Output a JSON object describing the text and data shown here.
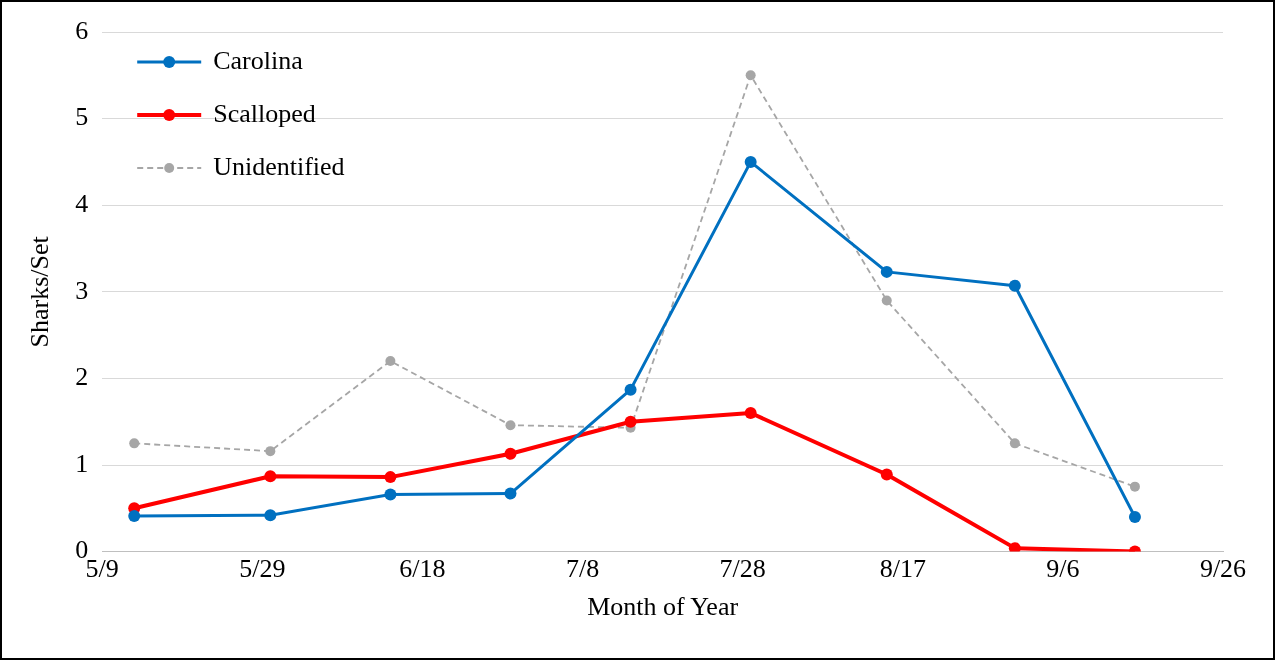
{
  "chart_data": {
    "type": "line",
    "xlabel": "Month of Year",
    "ylabel": "Sharks/Set",
    "x": [
      "--05-13",
      "--05-30",
      "--06-14",
      "--06-29",
      "--07-14",
      "--07-29",
      "--08-15",
      "--08-31",
      "--09-15"
    ],
    "series": [
      {
        "name": "Carolina",
        "color": "#0070c0",
        "line_style": "solid",
        "values": [
          0.41,
          0.42,
          0.66,
          0.67,
          1.87,
          4.5,
          3.23,
          3.07,
          0.4
        ]
      },
      {
        "name": "Scalloped",
        "color": "#ff0000",
        "line_style": "solid",
        "values": [
          0.5,
          0.87,
          0.86,
          1.13,
          1.5,
          1.6,
          0.89,
          0.04,
          0
        ]
      },
      {
        "name": "Unidentified",
        "color": "#a6a6a6",
        "line_style": "dashed",
        "values": [
          1.25,
          1.16,
          2.2,
          1.46,
          1.43,
          5.5,
          2.9,
          1.25,
          0.75
        ]
      }
    ],
    "xlim": [
      "--05-09",
      "--09-26"
    ],
    "xticks": [
      {
        "value": "--05-09",
        "label": "5/9"
      },
      {
        "value": "--05-29",
        "label": "5/29"
      },
      {
        "value": "--06-18",
        "label": "6/18"
      },
      {
        "value": "--07-08",
        "label": "7/8"
      },
      {
        "value": "--07-28",
        "label": "7/28"
      },
      {
        "value": "--08-17",
        "label": "8/17"
      },
      {
        "value": "--09-06",
        "label": "9/6"
      },
      {
        "value": "--09-26",
        "label": "9/26"
      }
    ],
    "ylim": [
      0,
      6
    ],
    "yticks": [
      0,
      1,
      2,
      3,
      4,
      5,
      6
    ],
    "grid": "y",
    "legend": "top left",
    "marker": "circle"
  }
}
